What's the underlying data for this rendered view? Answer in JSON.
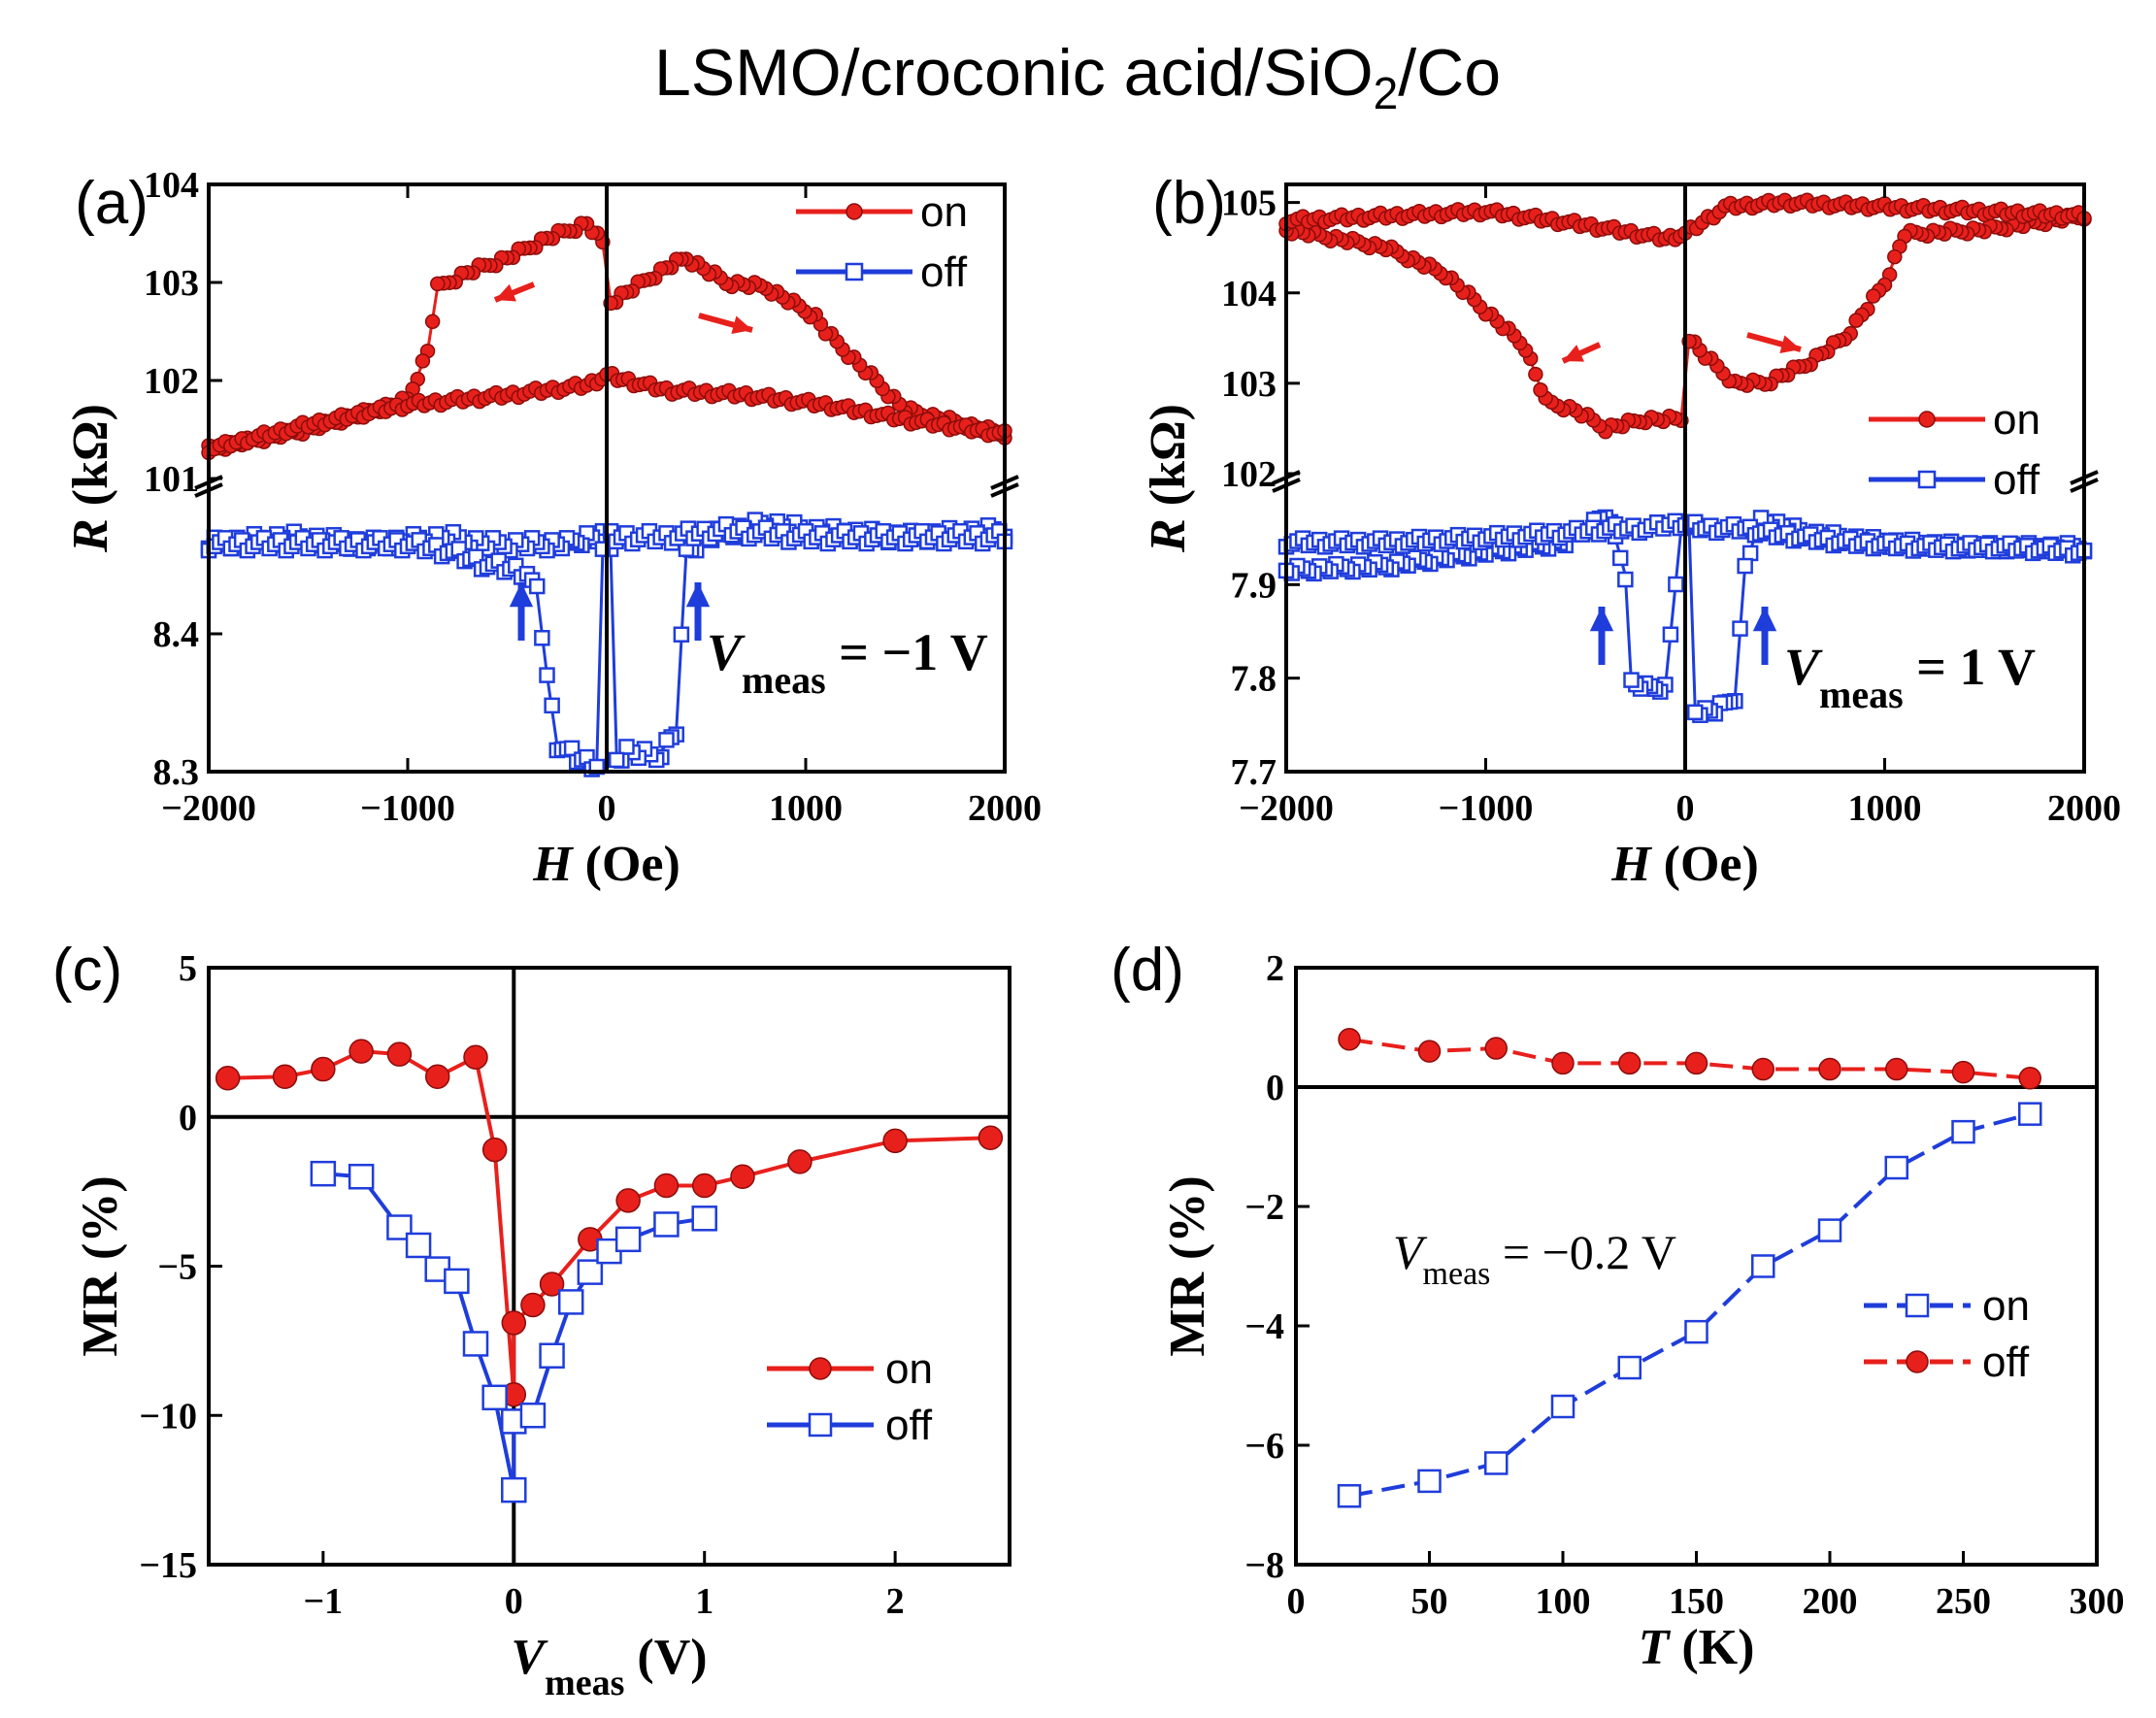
{
  "figure_title": "LSMO/croconic acid/SiO",
  "figure_title_sub": "2",
  "figure_title_tail": "/Co",
  "colors": {
    "red": "#e8201c",
    "blue": "#1f3ddb",
    "axis": "#000000"
  },
  "chart_data": [
    {
      "panel": "(a)",
      "type": "scatter",
      "title": "",
      "xlabel_var": "H",
      "xlabel_unit": " (Oe)",
      "ylabel_var": "R",
      "ylabel_unit": " (kΩ)",
      "xlim": [
        -2000,
        2000
      ],
      "xticks": [
        "−2000",
        "−1000",
        "0",
        "1000",
        "2000"
      ],
      "y_upper_ticks": [
        "101",
        "102",
        "103",
        "104"
      ],
      "y_lower_ticks": [
        "8.3",
        "8.4"
      ],
      "broken_axis": {
        "upper": [
          101,
          104
        ],
        "lower": [
          8.3,
          8.5
        ]
      },
      "annotation_var": "V",
      "annotation_sub": "meas",
      "annotation_value": " = −1 V",
      "legend": [
        {
          "label": "on",
          "marker": "filled-circle",
          "color": "#e8201c"
        },
        {
          "label": "off",
          "marker": "open-square",
          "color": "#1f3ddb"
        }
      ],
      "series": [
        {
          "name": "on (sweep down)",
          "x": [
            2000,
            1500,
            1100,
            1050,
            800,
            600,
            400,
            300,
            100,
            20,
            -20,
            -100,
            -300,
            -500,
            -700,
            -850,
            -900,
            -1000,
            -1500,
            -2000
          ],
          "y": [
            101.45,
            101.7,
            102.5,
            102.65,
            102.95,
            103.0,
            103.25,
            103.15,
            102.9,
            102.8,
            103.4,
            103.6,
            103.45,
            103.25,
            103.1,
            102.95,
            102.3,
            101.8,
            101.5,
            101.3
          ]
        },
        {
          "name": "on (sweep up)",
          "x": [
            -2000,
            -1500,
            -1000,
            -500,
            -100,
            0,
            300,
            700,
            1100,
            1500,
            2000
          ],
          "y": [
            101.3,
            101.55,
            101.75,
            101.85,
            101.95,
            102.05,
            101.9,
            101.85,
            101.75,
            101.6,
            101.45
          ]
        },
        {
          "name": "off (sweep down)",
          "x": [
            2000,
            1500,
            1000,
            800,
            500,
            400,
            350,
            250,
            100,
            50,
            20,
            -20,
            -100,
            -200,
            -300,
            -400,
            -600,
            -800,
            -1200,
            -1600,
            -2000
          ],
          "y": [
            8.475,
            8.47,
            8.475,
            8.48,
            8.47,
            8.46,
            8.33,
            8.31,
            8.315,
            8.31,
            8.46,
            8.47,
            8.47,
            8.465,
            8.465,
            8.465,
            8.465,
            8.47,
            8.465,
            8.47,
            8.465
          ]
        },
        {
          "name": "off (sweep up)",
          "x": [
            -2000,
            -1500,
            -1000,
            -800,
            -600,
            -400,
            -350,
            -300,
            -250,
            -150,
            -50,
            -20,
            20,
            100,
            300,
            600,
            1000,
            1500,
            2000
          ],
          "y": [
            8.465,
            8.465,
            8.465,
            8.46,
            8.45,
            8.445,
            8.43,
            8.37,
            8.32,
            8.31,
            8.305,
            8.46,
            8.47,
            8.47,
            8.47,
            8.475,
            8.47,
            8.47,
            8.47
          ]
        }
      ]
    },
    {
      "panel": "(b)",
      "type": "scatter",
      "title": "",
      "xlabel_var": "H",
      "xlabel_unit": " (Oe)",
      "ylabel_var": "R",
      "ylabel_unit": " (kΩ)",
      "xlim": [
        -2000,
        2000
      ],
      "xticks": [
        "−2000",
        "−1000",
        "0",
        "1000",
        "2000"
      ],
      "y_upper_ticks": [
        "102",
        "103",
        "104",
        "105"
      ],
      "y_lower_ticks": [
        "7.7",
        "7.8",
        "7.9"
      ],
      "broken_axis": {
        "upper": [
          102,
          105.2
        ],
        "lower": [
          7.7,
          8.0
        ]
      },
      "annotation_var": "V",
      "annotation_sub": "meas",
      "annotation_value": " =  1 V",
      "legend": [
        {
          "label": "on",
          "marker": "filled-circle",
          "color": "#e8201c"
        },
        {
          "label": "off",
          "marker": "open-square",
          "color": "#1f3ddb"
        }
      ],
      "series": [
        {
          "name": "on (sweep down)",
          "x": [
            2000,
            1500,
            1100,
            1000,
            800,
            600,
            400,
            250,
            100,
            20,
            -20,
            -200,
            -400,
            -550,
            -700,
            -800,
            -1000,
            -1200,
            -1500,
            -2000
          ],
          "y": [
            104.85,
            104.7,
            104.65,
            104.1,
            103.5,
            103.2,
            103.0,
            103.0,
            103.3,
            103.5,
            102.6,
            102.6,
            102.5,
            102.7,
            102.8,
            103.4,
            103.8,
            104.2,
            104.5,
            104.7
          ]
        },
        {
          "name": "on (sweep up)",
          "x": [
            -2000,
            -1000,
            -500,
            -100,
            0,
            200,
            500,
            1000,
            1500,
            2000
          ],
          "y": [
            104.8,
            104.9,
            104.75,
            104.6,
            104.65,
            104.95,
            105.0,
            104.95,
            104.9,
            104.85
          ]
        },
        {
          "name": "off (sweep down)",
          "x": [
            2000,
            1500,
            1000,
            600,
            380,
            300,
            250,
            150,
            50,
            20,
            -20,
            -100,
            -200,
            -270,
            -300,
            -350,
            -400,
            -600,
            -1000,
            -1500,
            -2000
          ],
          "y": [
            7.94,
            7.94,
            7.945,
            7.955,
            7.97,
            7.92,
            7.78,
            7.765,
            7.765,
            7.96,
            7.96,
            7.79,
            7.79,
            7.795,
            7.91,
            7.95,
            7.975,
            7.945,
            7.935,
            7.92,
            7.915
          ]
        },
        {
          "name": "off (sweep up)",
          "x": [
            -2000,
            -1500,
            -1000,
            -600,
            -350,
            -200,
            -50,
            0,
            100,
            300,
            400,
            800,
            1200,
            1600,
            2000
          ],
          "y": [
            7.945,
            7.945,
            7.95,
            7.955,
            7.96,
            7.96,
            7.965,
            7.965,
            7.96,
            7.96,
            7.955,
            7.945,
            7.94,
            7.94,
            7.935
          ]
        }
      ]
    },
    {
      "panel": "(c)",
      "type": "line",
      "title": "",
      "xlabel_var": "V",
      "xlabel_sub": "meas",
      "xlabel_unit": " (V)",
      "ylabel": "MR (%)",
      "xlim": [
        -1.6,
        2.6
      ],
      "ylim": [
        -15,
        5
      ],
      "xticks": [
        -1,
        0,
        1,
        2
      ],
      "xtick_labels": [
        "−1",
        "0",
        "1",
        "2"
      ],
      "yticks": [
        5,
        0,
        -5,
        -10,
        -15
      ],
      "ytick_labels": [
        "5",
        "0",
        "−5",
        "−10",
        "−15"
      ],
      "legend": [
        {
          "label": "on",
          "marker": "filled-circle",
          "color": "#e8201c"
        },
        {
          "label": "off",
          "marker": "open-square",
          "color": "#1f3ddb"
        }
      ],
      "series": [
        {
          "name": "on",
          "x": [
            -1.5,
            -1.2,
            -1.0,
            -0.8,
            -0.6,
            -0.4,
            -0.2,
            -0.1,
            0,
            0,
            0.1,
            0.2,
            0.4,
            0.6,
            0.8,
            1.0,
            1.2,
            1.5,
            2.0,
            2.5
          ],
          "y": [
            1.3,
            1.35,
            1.6,
            2.2,
            2.1,
            1.35,
            2.0,
            -1.1,
            -9.3,
            -6.9,
            -6.3,
            -5.6,
            -4.1,
            -2.8,
            -2.3,
            -2.3,
            -2.0,
            -1.5,
            -0.8,
            -0.7
          ]
        },
        {
          "name": "off",
          "x": [
            -1.0,
            -0.8,
            -0.6,
            -0.5,
            -0.4,
            -0.3,
            -0.2,
            -0.1,
            0,
            0,
            0.1,
            0.2,
            0.3,
            0.4,
            0.5,
            0.6,
            0.8,
            1.0
          ],
          "y": [
            -1.9,
            -2.0,
            -3.7,
            -4.3,
            -5.1,
            -5.5,
            -7.6,
            -9.4,
            -12.5,
            -10.2,
            -10.0,
            -8.0,
            -6.2,
            -5.2,
            -4.5,
            -4.1,
            -3.6,
            -3.4
          ]
        }
      ]
    },
    {
      "panel": "(d)",
      "type": "line",
      "title": "",
      "xlabel_var": "T",
      "xlabel_unit": " (K)",
      "ylabel": "MR (%)",
      "xlim": [
        0,
        300
      ],
      "ylim": [
        -8,
        2
      ],
      "xticks": [
        0,
        50,
        100,
        150,
        200,
        250,
        300
      ],
      "xtick_labels": [
        "0",
        "50",
        "100",
        "150",
        "200",
        "250",
        "300"
      ],
      "yticks": [
        2,
        0,
        -2,
        -4,
        -6,
        -8
      ],
      "ytick_labels": [
        "2",
        "0",
        "−2",
        "−4",
        "−6",
        "−8"
      ],
      "annotation_var": "V",
      "annotation_sub": "meas",
      "annotation_value": " = −0.2 V",
      "legend": [
        {
          "label": "on",
          "marker": "open-square",
          "color": "#1f3ddb"
        },
        {
          "label": "off",
          "marker": "filled-circle",
          "color": "#e8201c"
        }
      ],
      "series": [
        {
          "name": "on",
          "x": [
            20,
            50,
            75,
            100,
            125,
            150,
            175,
            200,
            225,
            250,
            275
          ],
          "y": [
            -6.85,
            -6.6,
            -6.3,
            -5.35,
            -4.7,
            -4.1,
            -3.0,
            -2.4,
            -1.35,
            -0.75,
            -0.45
          ]
        },
        {
          "name": "off",
          "x": [
            20,
            50,
            75,
            100,
            125,
            150,
            175,
            200,
            225,
            250,
            275
          ],
          "y": [
            0.8,
            0.6,
            0.65,
            0.4,
            0.4,
            0.4,
            0.3,
            0.3,
            0.3,
            0.25,
            0.15
          ]
        }
      ]
    }
  ]
}
